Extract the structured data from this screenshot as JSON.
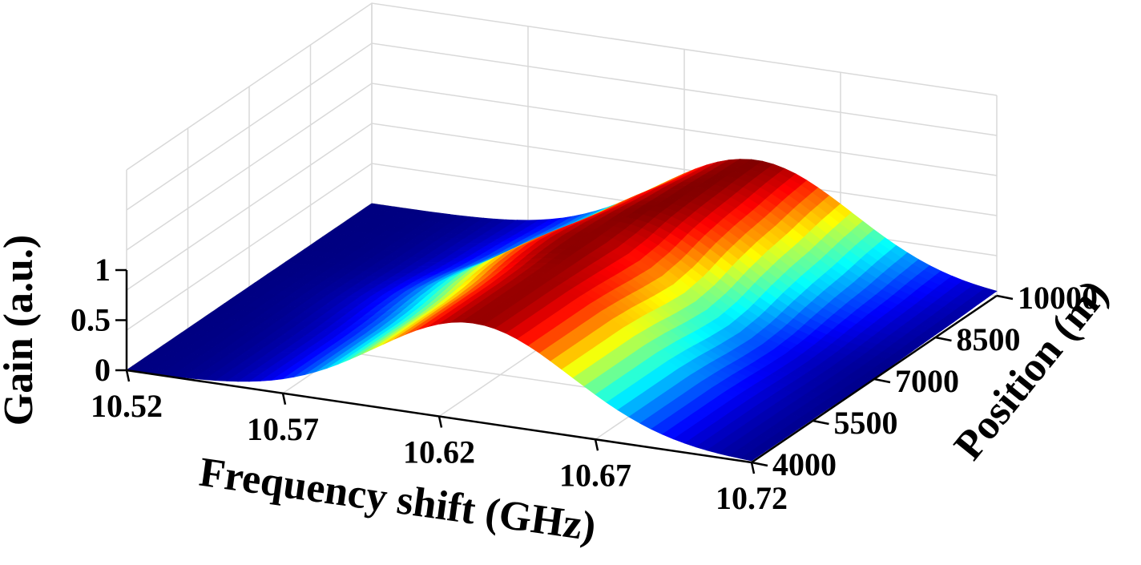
{
  "chart_data": {
    "type": "surface",
    "title": "",
    "xlabel": "Frequency shift (GHz)",
    "ylabel": "Position (m)",
    "zlabel": "Gain (a.u.)",
    "x_ticks": [
      "10.52",
      "10.57",
      "10.62",
      "10.67",
      "10.72"
    ],
    "y_ticks": [
      "4000",
      "5500",
      "7000",
      "8500",
      "10000"
    ],
    "z_ticks": [
      "0",
      "0.5",
      "1"
    ],
    "xlim": [
      10.52,
      10.72
    ],
    "ylim": [
      4000,
      10000
    ],
    "zlim": [
      0,
      1
    ],
    "colormap": "jet",
    "grid": true,
    "positions": [
      4000,
      4500,
      5000,
      5500,
      6000,
      6500,
      7000,
      7500,
      8000,
      8500,
      9000,
      9500,
      10000
    ],
    "gain_peak_ghz": [
      10.631,
      10.631,
      10.631,
      10.631,
      10.63,
      10.628,
      10.627,
      10.629,
      10.633,
      10.636,
      10.638,
      10.641,
      10.643
    ],
    "gain_linewidth_ghz": [
      0.044,
      0.044,
      0.044,
      0.044,
      0.044,
      0.044,
      0.044,
      0.044,
      0.044,
      0.044,
      0.044,
      0.044,
      0.044
    ],
    "gain_peak_value": [
      0.98,
      0.98,
      0.98,
      0.98,
      0.98,
      0.99,
      0.99,
      0.99,
      1.0,
      1.0,
      1.0,
      1.0,
      1.0
    ]
  }
}
